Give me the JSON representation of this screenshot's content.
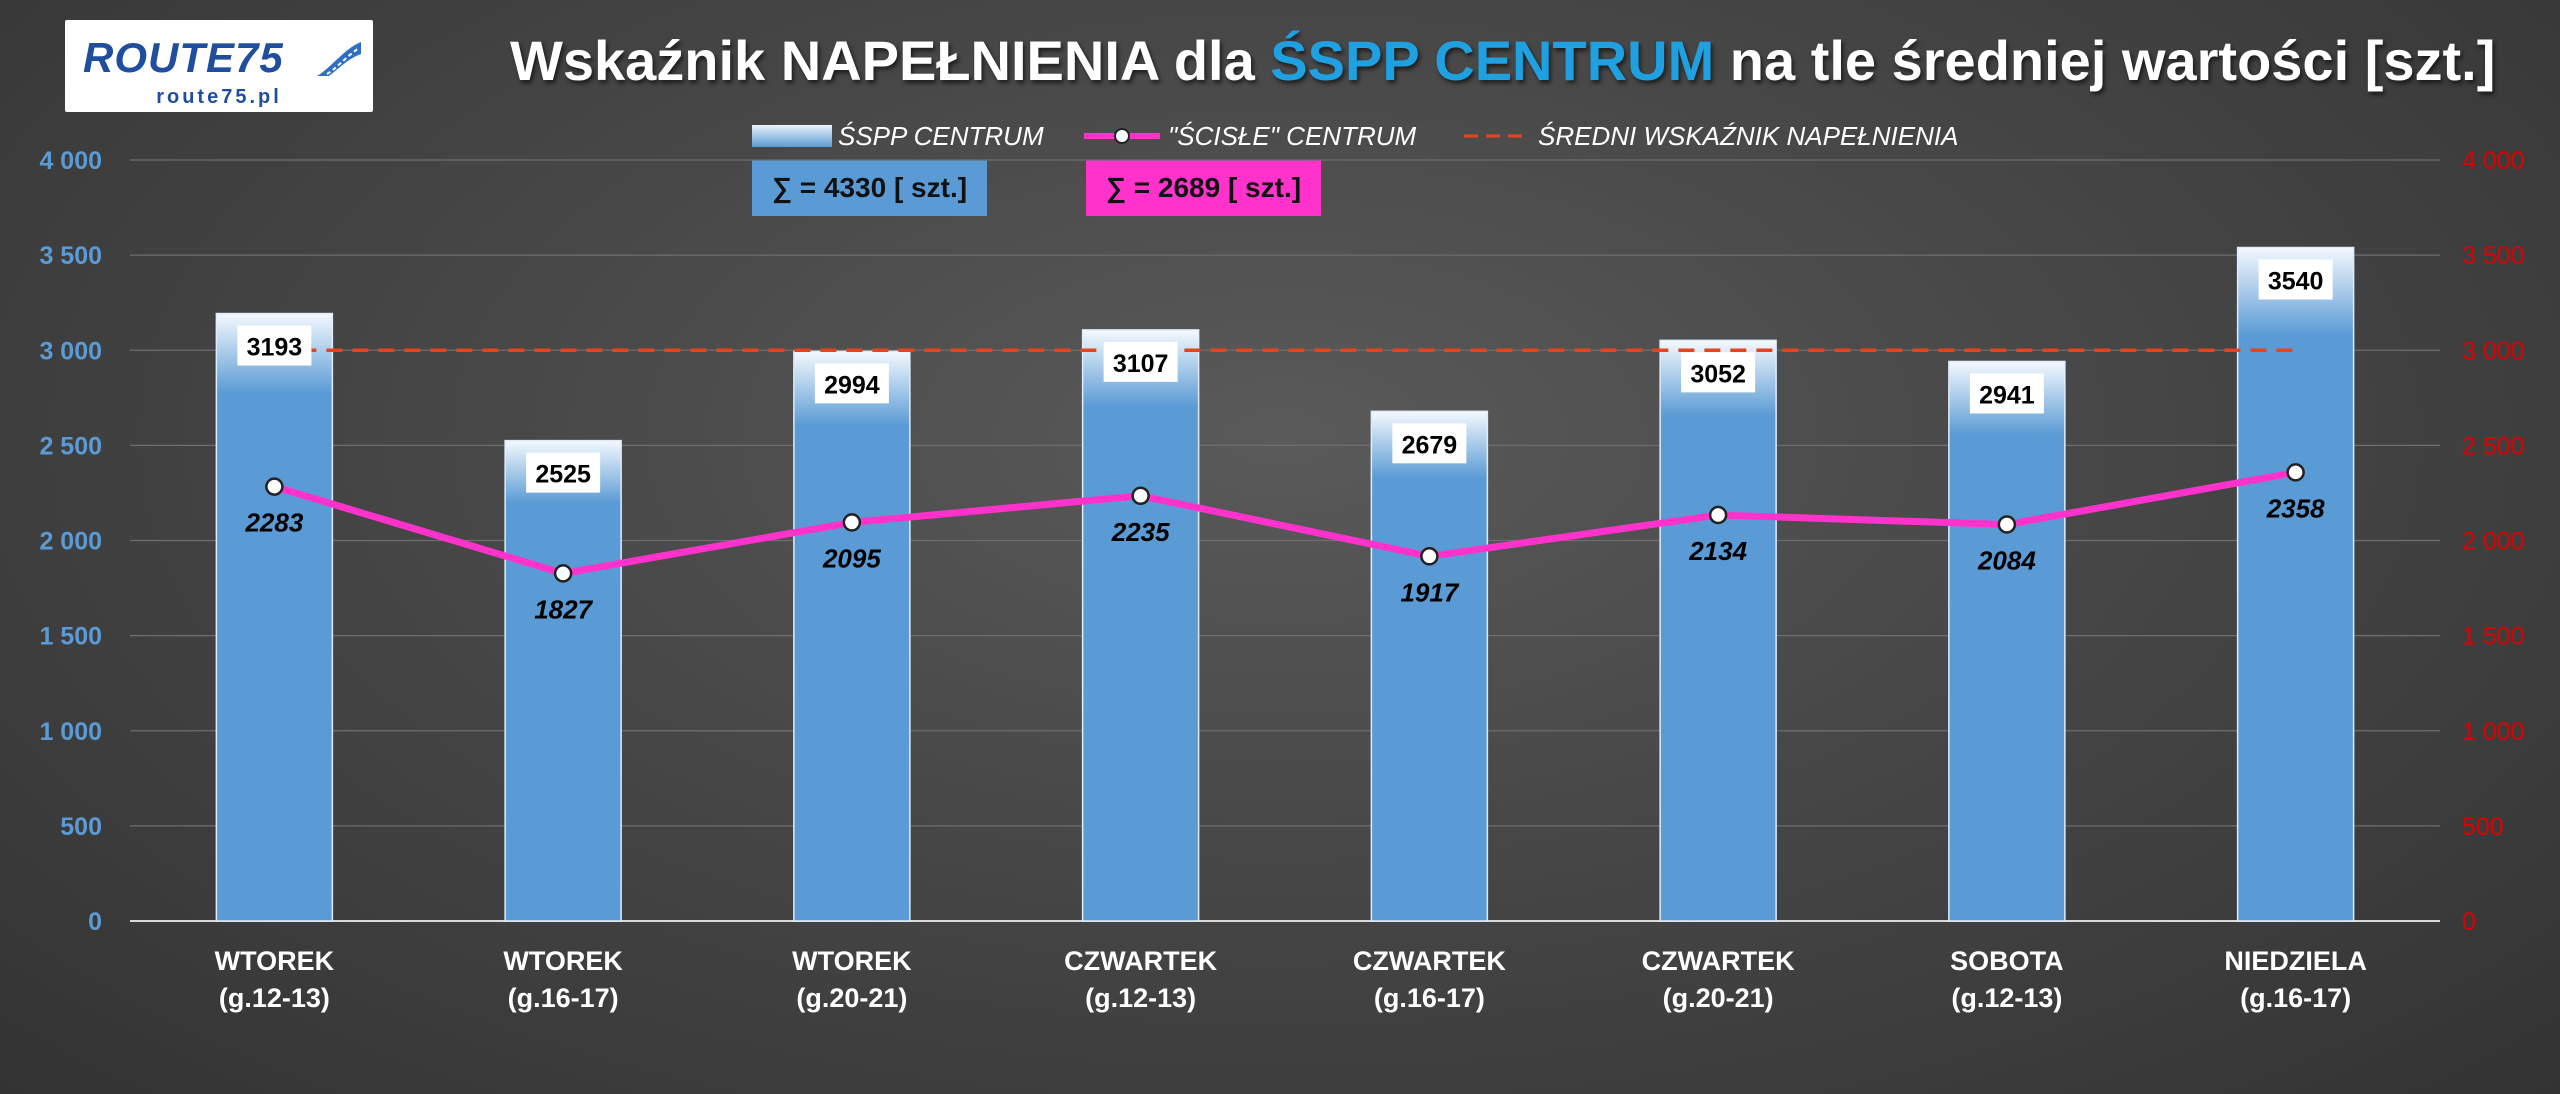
{
  "logo": {
    "brand": "ROUTE75",
    "url": "route75.pl"
  },
  "title": {
    "part1": "Wskaźnik NAPEŁNIENIA dla ",
    "highlight": "ŚSPP CENTRUM",
    "part2": " na tle średniej wartości [szt.]"
  },
  "legend": {
    "bars": "ŚSPP CENTRUM",
    "line": "\"ŚCISŁE\" CENTRUM",
    "average": "ŚREDNI WSKAŹNIK NAPEŁNIENIA"
  },
  "sums": {
    "bars": "∑ = 4330 [ szt.]",
    "line": "∑ = 2689 [ szt.]"
  },
  "colors": {
    "bar": "#5b9bd5",
    "line": "#ff33cc",
    "average": "#e8431a",
    "left_axis": "#5b9bd5",
    "right_axis": "#e00000",
    "sum_bars_bg": "#5b9bd5",
    "sum_line_bg": "#ff33cc"
  },
  "chart_data": {
    "type": "bar",
    "title": "Wskaźnik NAPEŁNIENIA dla ŚSPP CENTRUM na tle średniej wartości [szt.]",
    "categories": [
      [
        "WTOREK",
        "(g.12-13)"
      ],
      [
        "WTOREK",
        "(g.16-17)"
      ],
      [
        "WTOREK",
        "(g.20-21)"
      ],
      [
        "CZWARTEK",
        "(g.12-13)"
      ],
      [
        "CZWARTEK",
        "(g.16-17)"
      ],
      [
        "CZWARTEK",
        "(g.20-21)"
      ],
      [
        "SOBOTA",
        "(g.12-13)"
      ],
      [
        "NIEDZIELA",
        "(g.16-17)"
      ]
    ],
    "series": [
      {
        "name": "ŚSPP CENTRUM",
        "kind": "bar",
        "values": [
          3193,
          2525,
          2994,
          3107,
          2679,
          3052,
          2941,
          3540
        ]
      },
      {
        "name": "\"ŚCISŁE\" CENTRUM",
        "kind": "line",
        "values": [
          2283,
          1827,
          2095,
          2235,
          1917,
          2134,
          2084,
          2358
        ]
      },
      {
        "name": "ŚREDNI WSKAŹNIK NAPEŁNIENIA",
        "kind": "dashed-line",
        "value": 3000
      }
    ],
    "ylim": [
      0,
      4000
    ],
    "yticks": [
      0,
      500,
      1000,
      1500,
      2000,
      2500,
      3000,
      3500,
      4000
    ],
    "ytick_labels": [
      "0",
      "500",
      "1 000",
      "1 500",
      "2 000",
      "2 500",
      "3 000",
      "3 500",
      "4 000"
    ],
    "y2lim": [
      0,
      4000
    ],
    "grid": true
  }
}
